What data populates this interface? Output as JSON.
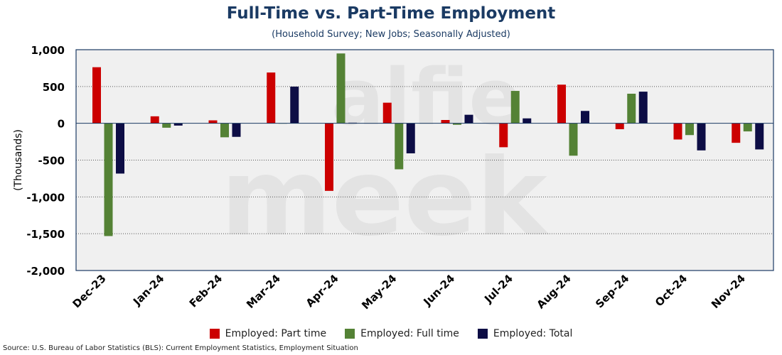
{
  "title": "Full-Time vs. Part-Time Employment",
  "subtitle": "(Household Survey; New Jobs; Seasonally Adjusted)",
  "source": "Source: U.S. Bureau of Labor Statistics (BLS): Current Employment Statistics, Employment Situation",
  "watermark": "alfie meek",
  "chart_data": {
    "type": "bar",
    "title": "Full-Time vs. Part-Time Employment",
    "subtitle": "(Household Survey; New Jobs; Seasonally Adjusted)",
    "xlabel": "",
    "ylabel": "(Thousands)",
    "ylim": [
      -2000,
      1000
    ],
    "yticks": [
      1000,
      500,
      0,
      -500,
      -1000,
      -1500,
      -2000
    ],
    "ytick_labels": [
      "1,000",
      "500",
      "0",
      "-500",
      "-1,000",
      "-1,500",
      "-2,000"
    ],
    "grid": true,
    "legend_position": "bottom",
    "categories": [
      "Dec-23",
      "Jan-24",
      "Feb-24",
      "Mar-24",
      "Apr-24",
      "May-24",
      "Jun-24",
      "Jul-24",
      "Aug-24",
      "Sep-24",
      "Oct-24",
      "Nov-24"
    ],
    "series": [
      {
        "name": "Employed: Part time",
        "color": "#cc0000",
        "values": [
          762,
          95,
          40,
          690,
          -918,
          280,
          45,
          -325,
          525,
          -80,
          -220,
          -265
        ]
      },
      {
        "name": "Employed: Full time",
        "color": "#548235",
        "values": [
          -1532,
          -60,
          -190,
          0,
          949,
          -625,
          -20,
          440,
          -440,
          402,
          -160,
          -110
        ]
      },
      {
        "name": "Employed: Total",
        "color": "#0d0d45",
        "values": [
          -683,
          -31,
          -184,
          498,
          8,
          -408,
          116,
          67,
          168,
          430,
          -368,
          -355
        ]
      }
    ]
  }
}
